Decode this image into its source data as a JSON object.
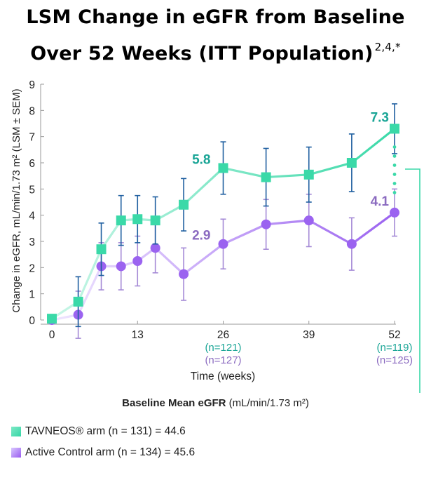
{
  "title": {
    "line1": "LSM Change in eGFR from Baseline",
    "line2": "Over 52 Weeks (ITT Population)",
    "refs": "2,4,*"
  },
  "chart_data": {
    "type": "line",
    "xlabel": "Time (weeks)",
    "ylabel": "Change in eGFR, mL/min/1.73 m² (LSM ± SEM)",
    "xlim": [
      0,
      52
    ],
    "ylim": [
      0,
      9
    ],
    "xticks": [
      0,
      13,
      26,
      39,
      52
    ],
    "yticks": [
      0,
      1,
      2,
      3,
      4,
      5,
      6,
      7,
      8,
      9
    ],
    "n_labels": [
      {
        "x": 26,
        "green": "(n=121)",
        "purple": "(n=127)"
      },
      {
        "x": 52,
        "green": "(n=119)",
        "purple": "(n=125)"
      }
    ],
    "series": [
      {
        "name": "TAVNEOS® arm",
        "color": "#3ad9a8",
        "x": [
          0,
          4,
          7.5,
          10.5,
          13,
          15.7,
          20,
          26,
          32.5,
          39,
          45.5,
          52
        ],
        "y": [
          0.05,
          0.7,
          2.7,
          3.8,
          3.85,
          3.8,
          4.4,
          5.8,
          5.45,
          5.55,
          6.0,
          7.3
        ],
        "err": [
          0,
          0.95,
          1.0,
          0.95,
          0.9,
          0.9,
          1.0,
          1.0,
          1.1,
          1.05,
          1.1,
          0.95
        ]
      },
      {
        "name": "Active Control arm",
        "color": "#9b63f0",
        "x": [
          0,
          4,
          7.5,
          10.5,
          13,
          15.7,
          20,
          26,
          32.5,
          39,
          45.5,
          52
        ],
        "y": [
          0.0,
          0.2,
          2.05,
          2.05,
          2.25,
          2.75,
          1.75,
          2.9,
          3.65,
          3.8,
          2.9,
          4.1
        ],
        "err": [
          0,
          0.9,
          0.9,
          0.9,
          0.95,
          0.95,
          1.0,
          0.95,
          0.95,
          1.0,
          1.0,
          0.9
        ]
      }
    ],
    "annotations": [
      {
        "text": "5.8",
        "series": 0,
        "x": 26
      },
      {
        "text": "7.3",
        "series": 0,
        "x": 52
      },
      {
        "text": "2.9",
        "series": 1,
        "x": 26
      },
      {
        "text": "4.1",
        "series": 1,
        "x": 52
      }
    ]
  },
  "legend": {
    "title_bold": "Baseline Mean eGFR",
    "title_rest": " (mL/min/1.73 m²)",
    "items": [
      {
        "label": "TAVNEOS® arm (n = 131) = 44.6"
      },
      {
        "label": "Active Control arm (n = 134) = 45.6"
      }
    ]
  },
  "colors": {
    "green": "#3ad9a8",
    "green_text": "#1aa596",
    "purple": "#9b63f0",
    "purple_text": "#8b6bc0",
    "errorbar": "#1f5fa0",
    "connector": "#3ad9a8"
  }
}
